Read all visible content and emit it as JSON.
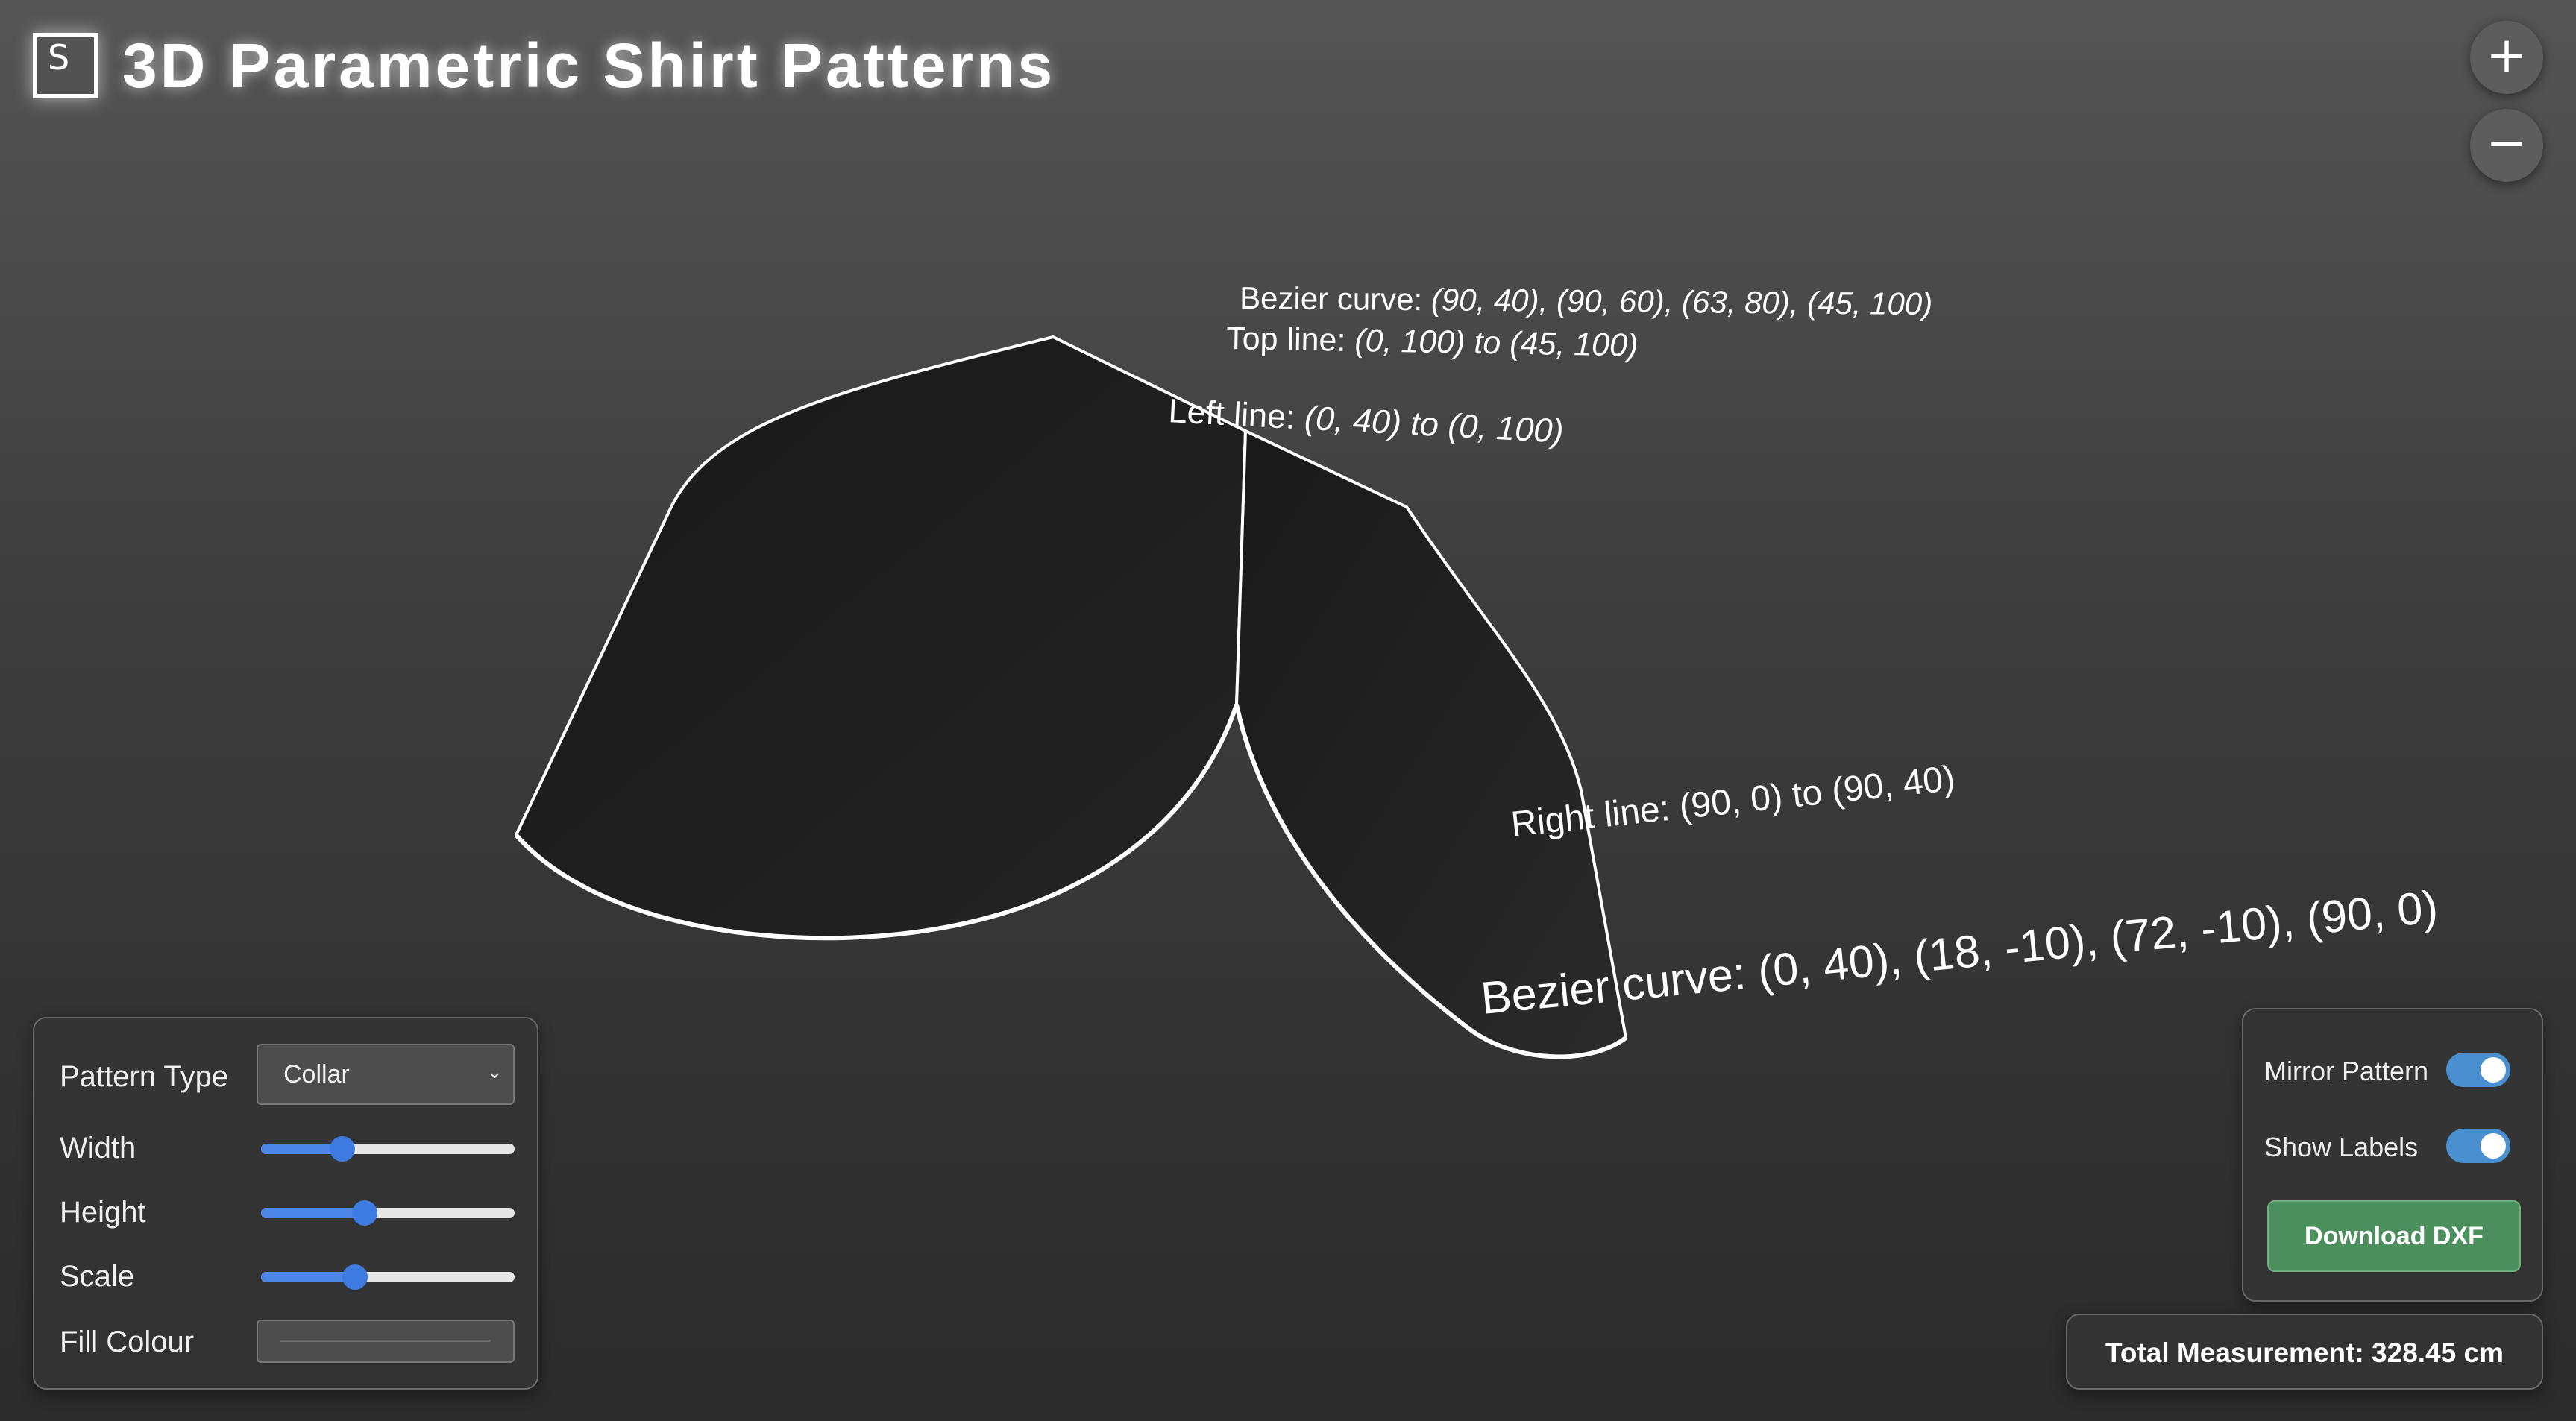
{
  "header": {
    "logo_letter": "S",
    "title": "3D Parametric Shirt Patterns"
  },
  "zoom": {
    "in_label": "+",
    "out_label": "−"
  },
  "labels": {
    "top_bezier_prefix": "Bezier curve: ",
    "top_bezier_points": "(90, 40), (90, 60), (63, 80), (45, 100)",
    "top_line_prefix": "Top line: ",
    "top_line_points": "(0, 100) to (45, 100)",
    "left_line_prefix": "Left line: ",
    "left_line_points": "(0, 40) to (0, 100)",
    "right_line": "Right line: (90, 0) to (90, 40)",
    "bottom_bezier": "Bezier curve: (0, 40), (18, -10), (72, -10), (90, 0)"
  },
  "controls": {
    "pattern_type_label": "Pattern Type",
    "pattern_type_value": "Collar",
    "width_label": "Width",
    "width_value": 0.32,
    "height_label": "Height",
    "height_value": 0.41,
    "scale_label": "Scale",
    "scale_value": 0.37,
    "fill_label": "Fill Colour",
    "fill_color": "#6b6b6b"
  },
  "options": {
    "mirror_label": "Mirror Pattern",
    "mirror_on": true,
    "labels_label": "Show Labels",
    "labels_on": true,
    "download_label": "Download DXF"
  },
  "measurement": {
    "text": "Total Measurement: 328.45 cm"
  },
  "colors": {
    "toggle_on": "#4a8fd0",
    "slider_accent": "#3d7be0",
    "download": "#4b8f5c",
    "shape_fill": "#1d1d1d"
  }
}
